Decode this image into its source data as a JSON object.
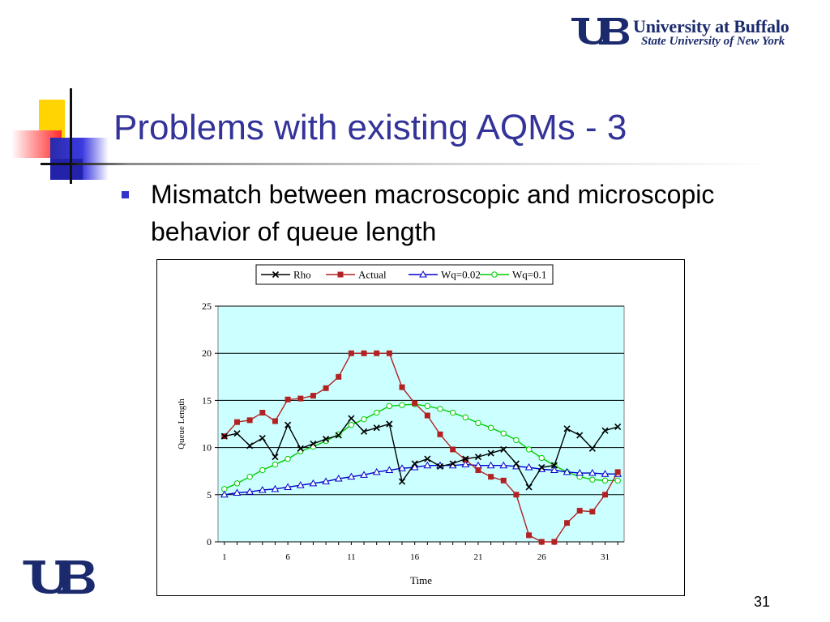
{
  "slide": {
    "title": "Problems with existing AQMs - 3",
    "bullets": [
      "Mismatch between macroscopic and microscopic behavior of queue length"
    ],
    "page_number": "31"
  },
  "logo": {
    "line1": "University at Buffalo",
    "line2": "State University of New York",
    "monogram": "UB",
    "color": "#1a2a6c"
  },
  "colors": {
    "title": "#333399",
    "bullet": "#3333cc",
    "plot_bg": "#ccffff"
  },
  "chart_data": {
    "type": "line",
    "xlabel": "Time",
    "ylabel": "Queue Length",
    "ylim": [
      0,
      25
    ],
    "yticks": [
      0,
      5,
      10,
      15,
      20,
      25
    ],
    "xlim": [
      1,
      32
    ],
    "xticks": [
      1,
      6,
      11,
      16,
      21,
      26,
      31
    ],
    "grid": true,
    "legend_position": "top",
    "x": [
      1,
      2,
      3,
      4,
      5,
      6,
      7,
      8,
      9,
      10,
      11,
      12,
      13,
      14,
      15,
      16,
      17,
      18,
      19,
      20,
      21,
      22,
      23,
      24,
      25,
      26,
      27,
      28,
      29,
      30,
      31,
      32
    ],
    "series": [
      {
        "name": "Rho",
        "color": "#000000",
        "marker": "x",
        "values": [
          11.2,
          11.5,
          10.2,
          11.0,
          9.0,
          12.4,
          9.9,
          10.4,
          10.9,
          11.3,
          13.1,
          11.7,
          12.1,
          12.5,
          6.4,
          8.3,
          8.8,
          8.0,
          8.3,
          8.8,
          9.0,
          9.4,
          9.8,
          8.3,
          5.8,
          7.9,
          8.1,
          12.0,
          11.3,
          9.9,
          11.8,
          12.2
        ]
      },
      {
        "name": "Actual",
        "color": "#b22222",
        "marker": "square",
        "values": [
          11.2,
          12.7,
          12.9,
          13.7,
          12.8,
          15.1,
          15.2,
          15.5,
          16.3,
          17.5,
          20.0,
          20.0,
          20.0,
          20.0,
          16.4,
          14.7,
          13.4,
          11.4,
          9.8,
          8.7,
          7.6,
          6.9,
          6.5,
          5.0,
          0.7,
          0.0,
          0.0,
          2.0,
          3.3,
          3.2,
          5.0,
          7.4
        ]
      },
      {
        "name": "Wq=0.02",
        "color": "#0000cc",
        "marker": "triangle",
        "values": [
          5.0,
          5.2,
          5.3,
          5.5,
          5.6,
          5.8,
          6.0,
          6.2,
          6.4,
          6.7,
          6.9,
          7.1,
          7.4,
          7.6,
          7.8,
          7.9,
          8.1,
          8.1,
          8.1,
          8.2,
          8.1,
          8.1,
          8.1,
          8.0,
          7.9,
          7.7,
          7.6,
          7.4,
          7.3,
          7.3,
          7.2,
          7.2
        ]
      },
      {
        "name": "Wq=0.1",
        "color": "#00cc00",
        "marker": "circle",
        "values": [
          5.6,
          6.2,
          6.9,
          7.6,
          8.2,
          8.8,
          9.6,
          10.1,
          10.7,
          11.4,
          12.4,
          13.0,
          13.7,
          14.4,
          14.5,
          14.6,
          14.4,
          14.1,
          13.7,
          13.2,
          12.6,
          12.1,
          11.5,
          10.8,
          9.8,
          8.9,
          8.1,
          7.4,
          6.9,
          6.6,
          6.5,
          6.5
        ]
      }
    ]
  }
}
